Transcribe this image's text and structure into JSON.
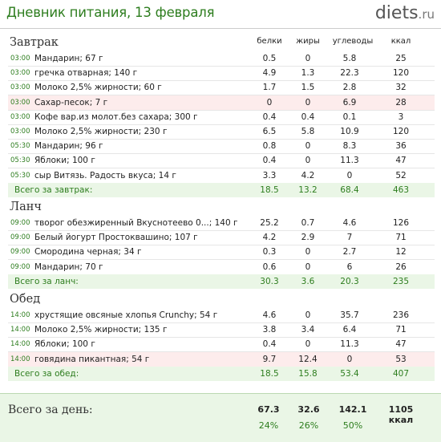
{
  "header": {
    "title": "Дневник питания, 13 февраля",
    "logo_main": "diets",
    "logo_domain": ".ru"
  },
  "columns": {
    "protein": "белки",
    "fat": "жиры",
    "carbs": "углеводы",
    "kcal": "ккал"
  },
  "meals": [
    {
      "title": "Завтрак",
      "rows": [
        {
          "time": "03:00",
          "name": "Мандарин; 67 г",
          "protein": "0.5",
          "fat": "0",
          "carbs": "5.8",
          "kcal": "25",
          "highlight": false
        },
        {
          "time": "03:00",
          "name": "гречка отварная; 140 г",
          "protein": "4.9",
          "fat": "1.3",
          "carbs": "22.3",
          "kcal": "120",
          "highlight": false
        },
        {
          "time": "03:00",
          "name": "Молоко 2,5% жирности; 60 г",
          "protein": "1.7",
          "fat": "1.5",
          "carbs": "2.8",
          "kcal": "32",
          "highlight": false
        },
        {
          "time": "03:00",
          "name": "Сахар-песок; 7 г",
          "protein": "0",
          "fat": "0",
          "carbs": "6.9",
          "kcal": "28",
          "highlight": true
        },
        {
          "time": "03:00",
          "name": "Кофе вар.из молот.без сахара; 300 г",
          "protein": "0.4",
          "fat": "0.4",
          "carbs": "0.1",
          "kcal": "3",
          "highlight": false
        },
        {
          "time": "03:00",
          "name": "Молоко 2,5% жирности; 230 г",
          "protein": "6.5",
          "fat": "5.8",
          "carbs": "10.9",
          "kcal": "120",
          "highlight": false
        },
        {
          "time": "05:30",
          "name": "Мандарин; 96 г",
          "protein": "0.8",
          "fat": "0",
          "carbs": "8.3",
          "kcal": "36",
          "highlight": false
        },
        {
          "time": "05:30",
          "name": "Яблоки; 100 г",
          "protein": "0.4",
          "fat": "0",
          "carbs": "11.3",
          "kcal": "47",
          "highlight": false
        },
        {
          "time": "05:30",
          "name": "сыр Витязь.  Радость вкуса; 14 г",
          "protein": "3.3",
          "fat": "4.2",
          "carbs": "0",
          "kcal": "52",
          "highlight": false
        }
      ],
      "total": {
        "label": "Всего за завтрак:",
        "protein": "18.5",
        "fat": "13.2",
        "carbs": "68.4",
        "kcal": "463"
      }
    },
    {
      "title": "Ланч",
      "rows": [
        {
          "time": "09:00",
          "name": "творог обезжиренный Вкуснотеево 0...; 140 г",
          "protein": "25.2",
          "fat": "0.7",
          "carbs": "4.6",
          "kcal": "126",
          "highlight": false
        },
        {
          "time": "09:00",
          "name": "Белый йогурт Простоквашино; 107 г",
          "protein": "4.2",
          "fat": "2.9",
          "carbs": "7",
          "kcal": "71",
          "highlight": false
        },
        {
          "time": "09:00",
          "name": "Смородина черная; 34 г",
          "protein": "0.3",
          "fat": "0",
          "carbs": "2.7",
          "kcal": "12",
          "highlight": false
        },
        {
          "time": "09:00",
          "name": "Мандарин; 70 г",
          "protein": "0.6",
          "fat": "0",
          "carbs": "6",
          "kcal": "26",
          "highlight": false
        }
      ],
      "total": {
        "label": "Всего за ланч:",
        "protein": "30.3",
        "fat": "3.6",
        "carbs": "20.3",
        "kcal": "235"
      }
    },
    {
      "title": "Обед",
      "rows": [
        {
          "time": "14:00",
          "name": "хрустящие овсяные хлопья Crunchy; 54 г",
          "protein": "4.6",
          "fat": "0",
          "carbs": "35.7",
          "kcal": "236",
          "highlight": false
        },
        {
          "time": "14:00",
          "name": "Молоко 2,5% жирности; 135 г",
          "protein": "3.8",
          "fat": "3.4",
          "carbs": "6.4",
          "kcal": "71",
          "highlight": false
        },
        {
          "time": "14:00",
          "name": "Яблоки; 100 г",
          "protein": "0.4",
          "fat": "0",
          "carbs": "11.3",
          "kcal": "47",
          "highlight": false
        },
        {
          "time": "14:00",
          "name": "говядина пикантная; 54 г",
          "protein": "9.7",
          "fat": "12.4",
          "carbs": "0",
          "kcal": "53",
          "highlight": true
        }
      ],
      "total": {
        "label": "Всего за обед:",
        "protein": "18.5",
        "fat": "15.8",
        "carbs": "53.4",
        "kcal": "407"
      }
    }
  ],
  "day_total": {
    "label": "Всего за день:",
    "protein": "67.3",
    "fat": "32.6",
    "carbs": "142.1",
    "kcal": "1105 ккал",
    "protein_pct": "24%",
    "fat_pct": "26%",
    "carbs_pct": "50%"
  },
  "colors": {
    "accent_green": "#2d7d1e",
    "highlight_red": "#fdecec",
    "total_bg": "#eaf6e6"
  }
}
